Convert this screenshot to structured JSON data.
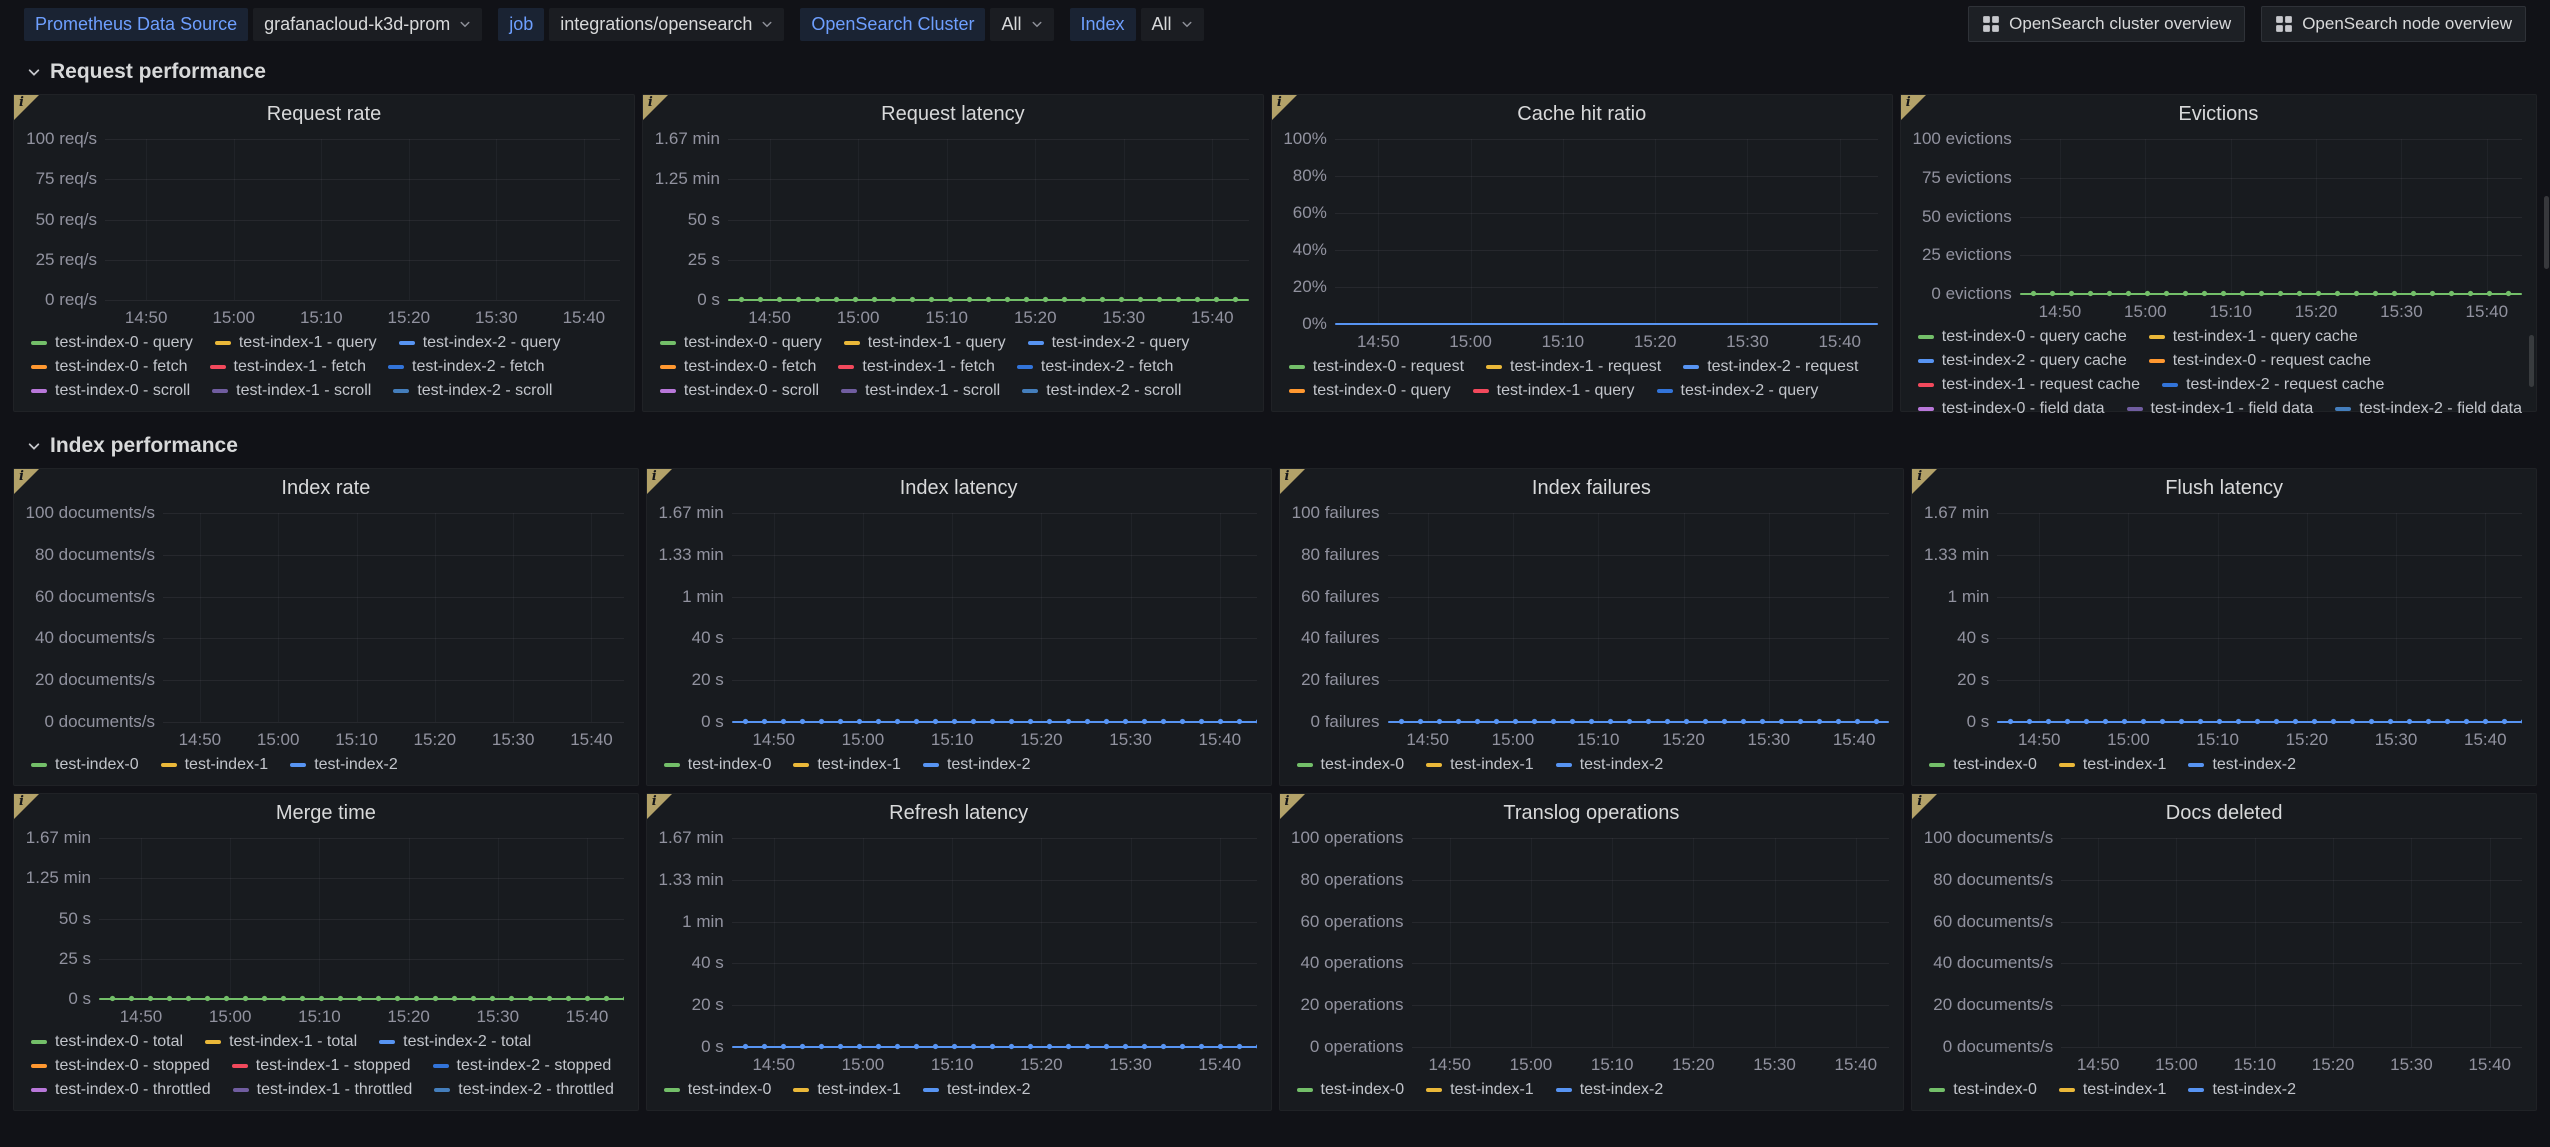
{
  "icons": {
    "panel_info": "i"
  },
  "topbar": {
    "variables": [
      {
        "label": "Prometheus Data Source",
        "value": "grafanacloud-k3d-prom"
      },
      {
        "label": "job",
        "value": "integrations/opensearch"
      },
      {
        "label": "OpenSearch Cluster",
        "value": "All"
      },
      {
        "label": "Index",
        "value": "All"
      }
    ],
    "buttons": [
      {
        "label": "OpenSearch cluster overview"
      },
      {
        "label": "OpenSearch node overview"
      }
    ]
  },
  "time_ticks": [
    "14:50",
    "15:00",
    "15:10",
    "15:20",
    "15:30",
    "15:40"
  ],
  "sections": [
    {
      "title": "Request performance",
      "panels": [
        {
          "title": "Request rate",
          "type": "line",
          "y_ticks": [
            "100 req/s",
            "75 req/s",
            "50 req/s",
            "25 req/s",
            "0 req/s"
          ],
          "series": [
            {
              "name": "test-index-0 - query",
              "color": "#73BF69",
              "values": []
            },
            {
              "name": "test-index-1 - query",
              "color": "#EAB839",
              "values": []
            },
            {
              "name": "test-index-2 - query",
              "color": "#5794F2",
              "values": []
            },
            {
              "name": "test-index-0 - fetch",
              "color": "#FF9830",
              "values": []
            },
            {
              "name": "test-index-1 - fetch",
              "color": "#F2495C",
              "values": []
            },
            {
              "name": "test-index-2 - fetch",
              "color": "#3274D9",
              "values": []
            },
            {
              "name": "test-index-0 - scroll",
              "color": "#B877D9",
              "values": []
            },
            {
              "name": "test-index-1 - scroll",
              "color": "#705DA0",
              "values": []
            },
            {
              "name": "test-index-2 - scroll",
              "color": "#447EBC",
              "values": []
            }
          ],
          "legend_rows": [
            [
              0,
              1,
              2
            ],
            [
              3,
              4,
              5
            ],
            [
              6,
              7,
              8
            ]
          ],
          "line": null
        },
        {
          "title": "Request latency",
          "type": "line",
          "y_ticks": [
            "1.67 min",
            "1.25 min",
            "50 s",
            "25 s",
            "0 s"
          ],
          "series": [
            {
              "name": "test-index-0 - query",
              "color": "#73BF69",
              "values": [
                0,
                0,
                0,
                0,
                0,
                0
              ]
            },
            {
              "name": "test-index-1 - query",
              "color": "#EAB839",
              "values": []
            },
            {
              "name": "test-index-2 - query",
              "color": "#5794F2",
              "values": []
            },
            {
              "name": "test-index-0 - fetch",
              "color": "#FF9830",
              "values": []
            },
            {
              "name": "test-index-1 - fetch",
              "color": "#F2495C",
              "values": []
            },
            {
              "name": "test-index-2 - fetch",
              "color": "#3274D9",
              "values": []
            },
            {
              "name": "test-index-0 - scroll",
              "color": "#B877D9",
              "values": []
            },
            {
              "name": "test-index-1 - scroll",
              "color": "#705DA0",
              "values": []
            },
            {
              "name": "test-index-2 - scroll",
              "color": "#447EBC",
              "values": []
            }
          ],
          "legend_rows": [
            [
              0,
              1,
              2
            ],
            [
              3,
              4,
              5
            ],
            [
              6,
              7,
              8
            ]
          ],
          "line": {
            "series": 0,
            "style": "points",
            "value": 0
          }
        },
        {
          "title": "Cache hit ratio",
          "type": "line",
          "y_ticks": [
            "100%",
            "80%",
            "60%",
            "40%",
            "20%",
            "0%"
          ],
          "series": [
            {
              "name": "test-index-0 - request",
              "color": "#73BF69",
              "values": []
            },
            {
              "name": "test-index-1 - request",
              "color": "#EAB839",
              "values": []
            },
            {
              "name": "test-index-2 - request",
              "color": "#5794F2",
              "values": [
                0,
                0,
                0,
                0,
                0,
                0
              ]
            },
            {
              "name": "test-index-0 - query",
              "color": "#FF9830",
              "values": []
            },
            {
              "name": "test-index-1 - query",
              "color": "#F2495C",
              "values": []
            },
            {
              "name": "test-index-2 - query",
              "color": "#3274D9",
              "values": []
            }
          ],
          "legend_rows": [
            [
              0,
              1,
              2
            ],
            [
              3,
              4,
              5
            ]
          ],
          "line": {
            "series": 2,
            "style": "solid",
            "value": 0
          }
        },
        {
          "title": "Evictions",
          "type": "line",
          "y_ticks": [
            "100 evictions",
            "75 evictions",
            "50 evictions",
            "25 evictions",
            "0 evictions"
          ],
          "series": [
            {
              "name": "test-index-0 - query cache",
              "color": "#73BF69",
              "values": [
                0,
                0,
                0,
                0,
                0,
                0
              ]
            },
            {
              "name": "test-index-1 - query cache",
              "color": "#EAB839",
              "values": []
            },
            {
              "name": "test-index-2 - query cache",
              "color": "#5794F2",
              "values": []
            },
            {
              "name": "test-index-0 - request cache",
              "color": "#FF9830",
              "values": []
            },
            {
              "name": "test-index-1 - request cache",
              "color": "#F2495C",
              "values": []
            },
            {
              "name": "test-index-2 - request cache",
              "color": "#3274D9",
              "values": []
            },
            {
              "name": "test-index-0 - field data",
              "color": "#B877D9",
              "values": []
            },
            {
              "name": "test-index-1 - field data",
              "color": "#705DA0",
              "values": []
            },
            {
              "name": "test-index-2 - field data",
              "color": "#447EBC",
              "values": []
            }
          ],
          "legend_rows": [
            [
              0,
              1
            ],
            [
              2,
              3
            ],
            [
              4,
              5
            ],
            [
              6,
              7,
              8
            ]
          ],
          "legend_clipped": true,
          "line": {
            "series": 0,
            "style": "points",
            "value": 0
          }
        }
      ]
    },
    {
      "title": "Index performance",
      "panels": [
        {
          "title": "Index rate",
          "type": "line",
          "y_ticks": [
            "100 documents/s",
            "80 documents/s",
            "60 documents/s",
            "40 documents/s",
            "20 documents/s",
            "0 documents/s"
          ],
          "series": [
            {
              "name": "test-index-0",
              "color": "#73BF69",
              "values": []
            },
            {
              "name": "test-index-1",
              "color": "#EAB839",
              "values": []
            },
            {
              "name": "test-index-2",
              "color": "#5794F2",
              "values": []
            }
          ],
          "legend_rows": [
            [
              0,
              1,
              2
            ]
          ],
          "line": null
        },
        {
          "title": "Index latency",
          "type": "line",
          "y_ticks": [
            "1.67 min",
            "1.33 min",
            "1 min",
            "40 s",
            "20 s",
            "0 s"
          ],
          "series": [
            {
              "name": "test-index-0",
              "color": "#73BF69",
              "values": []
            },
            {
              "name": "test-index-1",
              "color": "#EAB839",
              "values": []
            },
            {
              "name": "test-index-2",
              "color": "#5794F2",
              "values": [
                0,
                0,
                0,
                0,
                0,
                0
              ]
            }
          ],
          "legend_rows": [
            [
              0,
              1,
              2
            ]
          ],
          "line": {
            "series": 2,
            "style": "points",
            "value": 0
          }
        },
        {
          "title": "Index failures",
          "type": "line",
          "y_ticks": [
            "100 failures",
            "80 failures",
            "60 failures",
            "40 failures",
            "20 failures",
            "0 failures"
          ],
          "series": [
            {
              "name": "test-index-0",
              "color": "#73BF69",
              "values": []
            },
            {
              "name": "test-index-1",
              "color": "#EAB839",
              "values": []
            },
            {
              "name": "test-index-2",
              "color": "#5794F2",
              "values": [
                0,
                0,
                0,
                0,
                0,
                0
              ]
            }
          ],
          "legend_rows": [
            [
              0,
              1,
              2
            ]
          ],
          "line": {
            "series": 2,
            "style": "points",
            "value": 0
          }
        },
        {
          "title": "Flush latency",
          "type": "line",
          "y_ticks": [
            "1.67 min",
            "1.33 min",
            "1 min",
            "40 s",
            "20 s",
            "0 s"
          ],
          "series": [
            {
              "name": "test-index-0",
              "color": "#73BF69",
              "values": []
            },
            {
              "name": "test-index-1",
              "color": "#EAB839",
              "values": []
            },
            {
              "name": "test-index-2",
              "color": "#5794F2",
              "values": [
                0,
                0,
                0,
                0,
                0,
                0
              ]
            }
          ],
          "legend_rows": [
            [
              0,
              1,
              2
            ]
          ],
          "line": {
            "series": 2,
            "style": "points",
            "value": 0
          }
        },
        {
          "title": "Merge time",
          "type": "line",
          "y_ticks": [
            "1.67 min",
            "1.25 min",
            "50 s",
            "25 s",
            "0 s"
          ],
          "series": [
            {
              "name": "test-index-0 - total",
              "color": "#73BF69",
              "values": [
                0,
                0,
                0,
                0,
                0,
                0
              ]
            },
            {
              "name": "test-index-1 - total",
              "color": "#EAB839",
              "values": []
            },
            {
              "name": "test-index-2 - total",
              "color": "#5794F2",
              "values": []
            },
            {
              "name": "test-index-0 - stopped",
              "color": "#FF9830",
              "values": []
            },
            {
              "name": "test-index-1 - stopped",
              "color": "#F2495C",
              "values": []
            },
            {
              "name": "test-index-2 - stopped",
              "color": "#3274D9",
              "values": []
            },
            {
              "name": "test-index-0 - throttled",
              "color": "#B877D9",
              "values": []
            },
            {
              "name": "test-index-1 - throttled",
              "color": "#705DA0",
              "values": []
            },
            {
              "name": "test-index-2 - throttled",
              "color": "#447EBC",
              "values": []
            }
          ],
          "legend_rows": [
            [
              0,
              1,
              2
            ],
            [
              3,
              4,
              5
            ],
            [
              6,
              7,
              8
            ]
          ],
          "line": {
            "series": 0,
            "style": "points",
            "value": 0
          }
        },
        {
          "title": "Refresh latency",
          "type": "line",
          "y_ticks": [
            "1.67 min",
            "1.33 min",
            "1 min",
            "40 s",
            "20 s",
            "0 s"
          ],
          "series": [
            {
              "name": "test-index-0",
              "color": "#73BF69",
              "values": []
            },
            {
              "name": "test-index-1",
              "color": "#EAB839",
              "values": []
            },
            {
              "name": "test-index-2",
              "color": "#5794F2",
              "values": [
                0,
                0,
                0,
                0,
                0,
                0
              ]
            }
          ],
          "legend_rows": [
            [
              0,
              1,
              2
            ]
          ],
          "line": {
            "series": 2,
            "style": "points",
            "value": 0
          }
        },
        {
          "title": "Translog operations",
          "type": "line",
          "y_ticks": [
            "100 operations",
            "80 operations",
            "60 operations",
            "40 operations",
            "20 operations",
            "0 operations"
          ],
          "series": [
            {
              "name": "test-index-0",
              "color": "#73BF69",
              "values": []
            },
            {
              "name": "test-index-1",
              "color": "#EAB839",
              "values": []
            },
            {
              "name": "test-index-2",
              "color": "#5794F2",
              "values": []
            }
          ],
          "legend_rows": [
            [
              0,
              1,
              2
            ]
          ],
          "line": null
        },
        {
          "title": "Docs deleted",
          "type": "line",
          "y_ticks": [
            "100 documents/s",
            "80 documents/s",
            "60 documents/s",
            "40 documents/s",
            "20 documents/s",
            "0 documents/s"
          ],
          "series": [
            {
              "name": "test-index-0",
              "color": "#73BF69",
              "values": []
            },
            {
              "name": "test-index-1",
              "color": "#EAB839",
              "values": []
            },
            {
              "name": "test-index-2",
              "color": "#5794F2",
              "values": []
            }
          ],
          "legend_rows": [
            [
              0,
              1,
              2
            ]
          ],
          "line": null
        }
      ]
    }
  ]
}
